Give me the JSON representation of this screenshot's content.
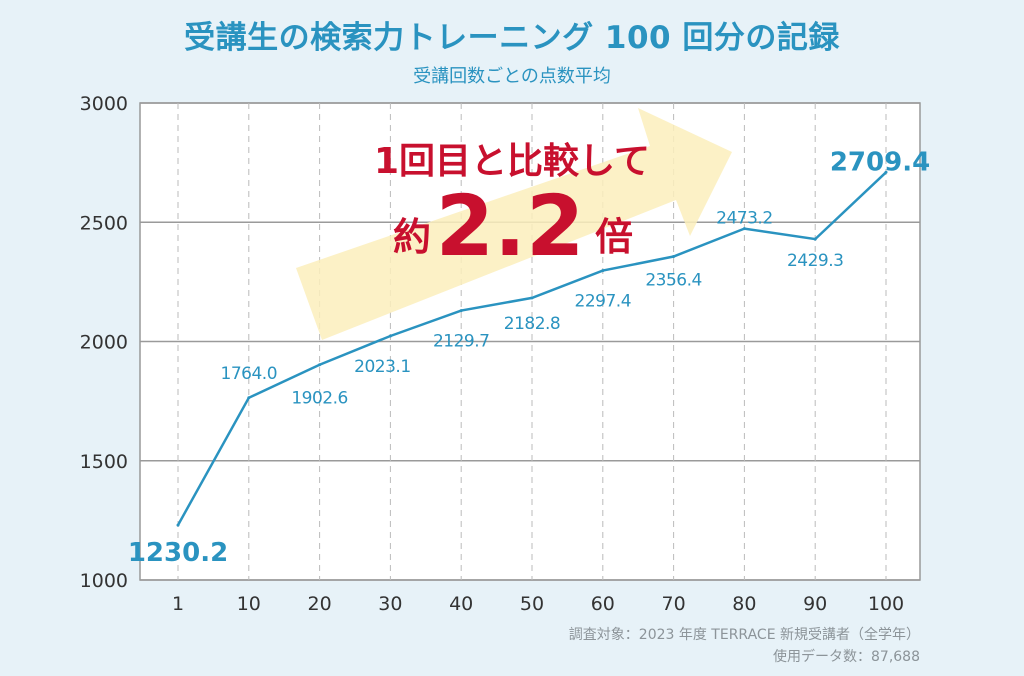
{
  "chart_data": {
    "type": "line",
    "title": "受講生の検索力トレーニング 100 回分の記録",
    "subtitle": "受講回数ごとの点数平均",
    "categories": [
      "1",
      "10",
      "20",
      "30",
      "40",
      "50",
      "60",
      "70",
      "80",
      "90",
      "100"
    ],
    "series": [
      {
        "name": "点数平均",
        "values": [
          1230.2,
          1764.0,
          1902.6,
          2023.1,
          2129.7,
          2182.8,
          2297.4,
          2356.4,
          2473.2,
          2429.3,
          2709.4
        ]
      }
    ],
    "value_labels": [
      "1230.2",
      "1764.0",
      "1902.6",
      "2023.1",
      "2129.7",
      "2182.8",
      "2297.4",
      "2356.4",
      "2473.2",
      "2429.3",
      "2709.4"
    ],
    "ylim": [
      1000,
      3000
    ],
    "yticks": [
      "1000",
      "1500",
      "2000",
      "2500",
      "3000"
    ],
    "grid": true,
    "annotation": {
      "line1": "1回目と比較して",
      "prefix": "約",
      "value": "2.2",
      "suffix": "倍"
    },
    "colors": {
      "line": "#2a93c0",
      "accent": "#c8102e",
      "arrow": "#fbeebc"
    }
  },
  "footer": {
    "line1": "調査対象：2023 年度 TERRACE 新規受講者（全学年）",
    "line2": "使用データ数：87,688"
  }
}
